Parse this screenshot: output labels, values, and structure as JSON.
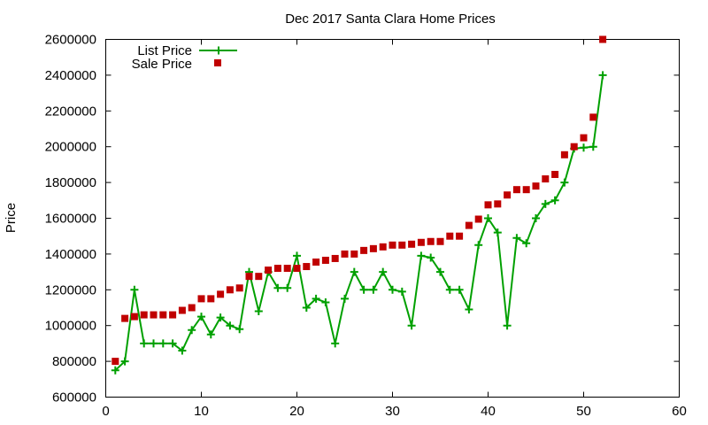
{
  "chart_data": {
    "type": "line",
    "title": "Dec 2017 Santa Clara Home Prices",
    "xlabel": "",
    "ylabel": "Price",
    "xlim": [
      0,
      60
    ],
    "ylim": [
      600000,
      2600000
    ],
    "xticks": [
      0,
      10,
      20,
      30,
      40,
      50,
      60
    ],
    "yticks": [
      600000,
      800000,
      1000000,
      1200000,
      1400000,
      1600000,
      1800000,
      2000000,
      2200000,
      2400000,
      2600000
    ],
    "grid": false,
    "legend_position": "top-left",
    "series": [
      {
        "name": "List Price",
        "style": "line-with-plus-markers",
        "color": "#00a000",
        "x": [
          1,
          2,
          3,
          4,
          5,
          6,
          7,
          8,
          9,
          10,
          11,
          12,
          13,
          14,
          15,
          16,
          17,
          18,
          19,
          20,
          21,
          22,
          23,
          24,
          25,
          26,
          27,
          28,
          29,
          30,
          31,
          32,
          33,
          34,
          35,
          36,
          37,
          38,
          39,
          40,
          41,
          42,
          43,
          44,
          45,
          46,
          47,
          48,
          49,
          50,
          51,
          52
        ],
        "values": [
          750000,
          800000,
          1200000,
          900000,
          900000,
          900000,
          900000,
          860000,
          975000,
          1050000,
          950000,
          1045000,
          1000000,
          980000,
          1300000,
          1080000,
          1300000,
          1210000,
          1210000,
          1390000,
          1100000,
          1150000,
          1130000,
          900000,
          1150000,
          1300000,
          1200000,
          1200000,
          1300000,
          1200000,
          1190000,
          1000000,
          1390000,
          1380000,
          1300000,
          1200000,
          1200000,
          1090000,
          1450000,
          1600000,
          1520000,
          1000000,
          1490000,
          1460000,
          1600000,
          1680000,
          1700000,
          1800000,
          1990000,
          1995000,
          2000000,
          2400000
        ]
      },
      {
        "name": "Sale Price",
        "style": "square-markers",
        "color": "#c00000",
        "x": [
          1,
          2,
          3,
          4,
          5,
          6,
          7,
          8,
          9,
          10,
          11,
          12,
          13,
          14,
          15,
          16,
          17,
          18,
          19,
          20,
          21,
          22,
          23,
          24,
          25,
          26,
          27,
          28,
          29,
          30,
          31,
          32,
          33,
          34,
          35,
          36,
          37,
          38,
          39,
          40,
          41,
          42,
          43,
          44,
          45,
          46,
          47,
          48,
          49,
          50,
          51,
          52
        ],
        "values": [
          800000,
          1040000,
          1050000,
          1060000,
          1060000,
          1060000,
          1060000,
          1085000,
          1100000,
          1150000,
          1150000,
          1175000,
          1200000,
          1210000,
          1275000,
          1275000,
          1310000,
          1320000,
          1320000,
          1320000,
          1330000,
          1355000,
          1365000,
          1375000,
          1400000,
          1400000,
          1420000,
          1430000,
          1440000,
          1450000,
          1450000,
          1455000,
          1465000,
          1470000,
          1470000,
          1500000,
          1500000,
          1560000,
          1595000,
          1675000,
          1680000,
          1730000,
          1760000,
          1760000,
          1780000,
          1820000,
          1845000,
          1955000,
          2000000,
          2050000,
          2165000,
          2600000
        ]
      }
    ]
  }
}
